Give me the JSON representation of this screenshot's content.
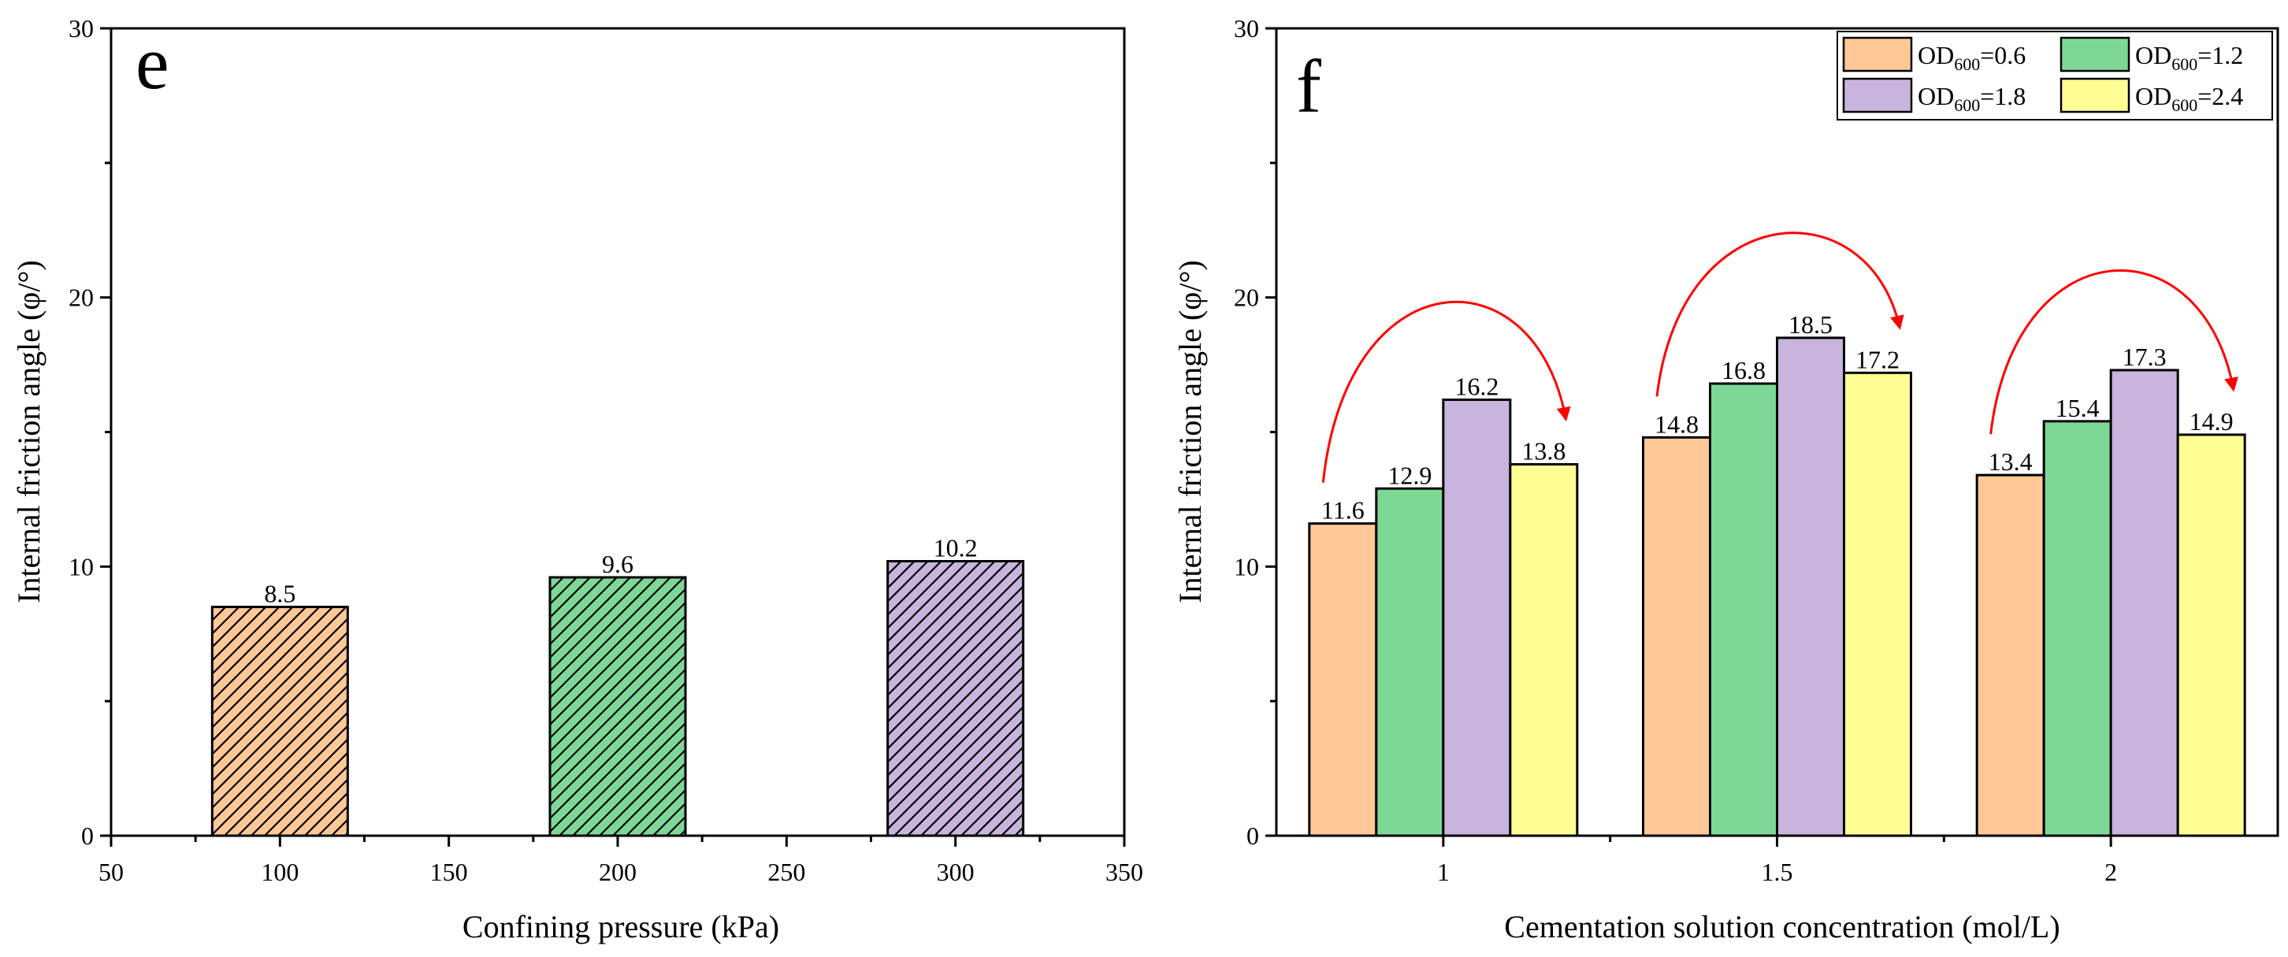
{
  "chart_data": [
    {
      "panel_label": "e",
      "type": "bar",
      "x": [
        100,
        200,
        300
      ],
      "values": [
        8.5,
        9.6,
        10.2
      ],
      "data_labels": [
        "8.5",
        "9.6",
        "10.2"
      ],
      "xlabel": "Confining pressure (kPa)",
      "ylabel": "Internal friction angle (φ/°)",
      "xlim": [
        50,
        350
      ],
      "ylim": [
        0,
        30
      ],
      "xticks": [
        "50",
        "100",
        "150",
        "200",
        "250",
        "300",
        "350"
      ],
      "yticks": [
        "0",
        "10",
        "20",
        "30"
      ],
      "bar_fill": "hatched",
      "colors": [
        "#FFC896",
        "#7DD897",
        "#C8B4DC"
      ],
      "grid": false
    },
    {
      "panel_label": "f",
      "type": "bar",
      "categories": [
        "1",
        "1.5",
        "2"
      ],
      "series": [
        {
          "legend": {
            "base": "OD",
            "sub": "600",
            "tail": "=0.6"
          },
          "values": [
            11.6,
            14.8,
            13.4
          ],
          "color": "#FFC896"
        },
        {
          "legend": {
            "base": "OD",
            "sub": "600",
            "tail": "=1.2"
          },
          "values": [
            12.9,
            16.8,
            15.4
          ],
          "color": "#7DD897"
        },
        {
          "legend": {
            "base": "OD",
            "sub": "600",
            "tail": "=1.8"
          },
          "values": [
            16.2,
            18.5,
            17.3
          ],
          "color": "#C8B4DC"
        },
        {
          "legend": {
            "base": "OD",
            "sub": "600",
            "tail": "=2.4"
          },
          "values": [
            13.8,
            17.2,
            14.9
          ],
          "color": "#FFFF96"
        }
      ],
      "data_labels": [
        [
          "11.6",
          "14.8",
          "13.4"
        ],
        [
          "12.9",
          "16.8",
          "15.4"
        ],
        [
          "16.2",
          "18.5",
          "17.3"
        ],
        [
          "13.8",
          "17.2",
          "14.9"
        ]
      ],
      "xlabel": "Cementation solution concentration (mol/L)",
      "ylabel": "Internal friction angle (φ/°)",
      "ylim": [
        0,
        30
      ],
      "yticks": [
        "0",
        "10",
        "20",
        "30"
      ],
      "legend_position": "top-right",
      "annotation_color": "#FF0000",
      "grid": false
    }
  ]
}
